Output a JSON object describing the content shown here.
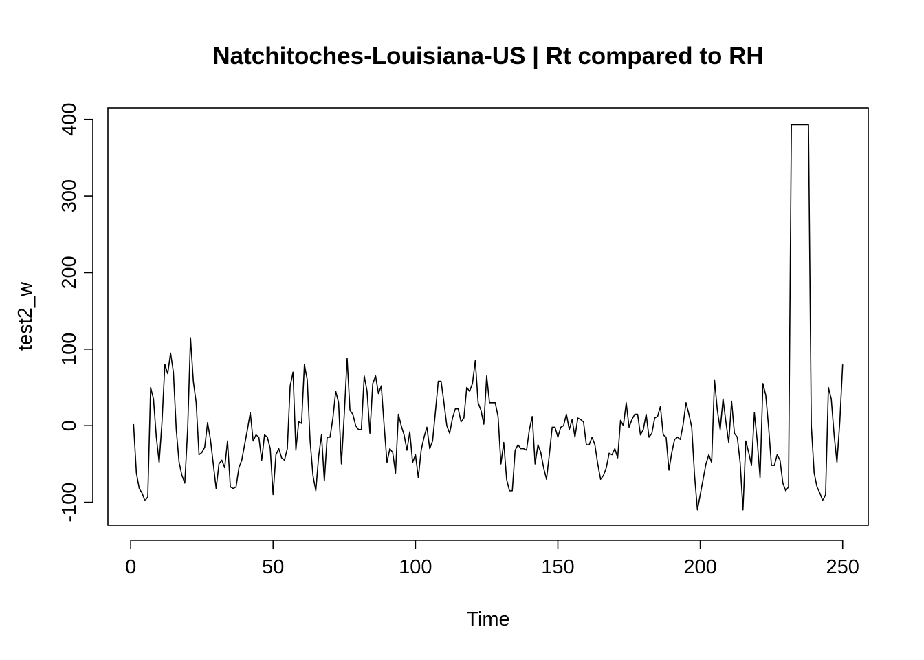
{
  "chart_data": {
    "type": "line",
    "title": "Natchitoches-Louisiana-US | Rt compared to RH",
    "xlabel": "Time",
    "ylabel": "test2_w",
    "xlim": [
      -8,
      259
    ],
    "ylim": [
      -130,
      415
    ],
    "xticks": [
      0,
      50,
      100,
      150,
      200,
      250
    ],
    "yticks": [
      -100,
      0,
      100,
      200,
      300,
      400
    ],
    "xtick_labels": [
      "0",
      "50",
      "100",
      "150",
      "200",
      "250"
    ],
    "ytick_labels": [
      "-100",
      "0",
      "100",
      "200",
      "300",
      "400"
    ],
    "grid": false,
    "legend": "none",
    "line_color": "#000000",
    "series": [
      {
        "values": [
          2,
          -62,
          -82,
          -88,
          -98,
          -93,
          50,
          35,
          -15,
          -48,
          5,
          80,
          68,
          95,
          70,
          -5,
          -48,
          -65,
          -75,
          -5,
          115,
          58,
          30,
          -38,
          -35,
          -28,
          4,
          -18,
          -50,
          -82,
          -50,
          -45,
          -55,
          -20,
          -80,
          -82,
          -80,
          -55,
          -45,
          -25,
          -5,
          17,
          -20,
          -12,
          -15,
          -45,
          -12,
          -15,
          -30,
          -90,
          -38,
          -30,
          -42,
          -45,
          -30,
          52,
          70,
          -32,
          5,
          3,
          80,
          60,
          -20,
          -65,
          -85,
          -40,
          -12,
          -72,
          -15,
          -15,
          10,
          45,
          30,
          -50,
          15,
          88,
          20,
          15,
          0,
          -5,
          -5,
          65,
          45,
          -10,
          55,
          65,
          42,
          52,
          0,
          -48,
          -30,
          -35,
          -62,
          15,
          0,
          -12,
          -32,
          -8,
          -48,
          -38,
          -68,
          -32,
          -15,
          -2,
          -30,
          -20,
          18,
          58,
          58,
          30,
          0,
          -10,
          10,
          22,
          22,
          5,
          10,
          50,
          45,
          55,
          85,
          30,
          20,
          2,
          65,
          30,
          30,
          30,
          12,
          -50,
          -22,
          -70,
          -85,
          -85,
          -32,
          -25,
          -30,
          -30,
          -32,
          -5,
          12,
          -50,
          -25,
          -35,
          -55,
          -70,
          -38,
          -2,
          -2,
          -15,
          -2,
          0,
          15,
          -5,
          8,
          -15,
          10,
          8,
          5,
          -25,
          -25,
          -15,
          -25,
          -50,
          -70,
          -65,
          -55,
          -36,
          -38,
          -30,
          -42,
          7,
          0,
          30,
          -2,
          8,
          15,
          15,
          -12,
          -5,
          15,
          -15,
          -10,
          10,
          12,
          25,
          -12,
          -15,
          -58,
          -35,
          -18,
          -15,
          -18,
          2,
          30,
          15,
          -2,
          -65,
          -110,
          -90,
          -70,
          -50,
          -38,
          -48,
          60,
          20,
          -5,
          35,
          5,
          -22,
          32,
          -10,
          -15,
          -48,
          -110,
          -20,
          -35,
          -52,
          17,
          -20,
          -68,
          55,
          40,
          -2,
          -52,
          -52,
          -38,
          -45,
          -75,
          -85,
          -80,
          393,
          393,
          393,
          393,
          393,
          393,
          393,
          0,
          -62,
          -80,
          -88,
          -98,
          -90,
          50,
          35,
          -12,
          -48,
          5,
          80
        ]
      }
    ]
  }
}
